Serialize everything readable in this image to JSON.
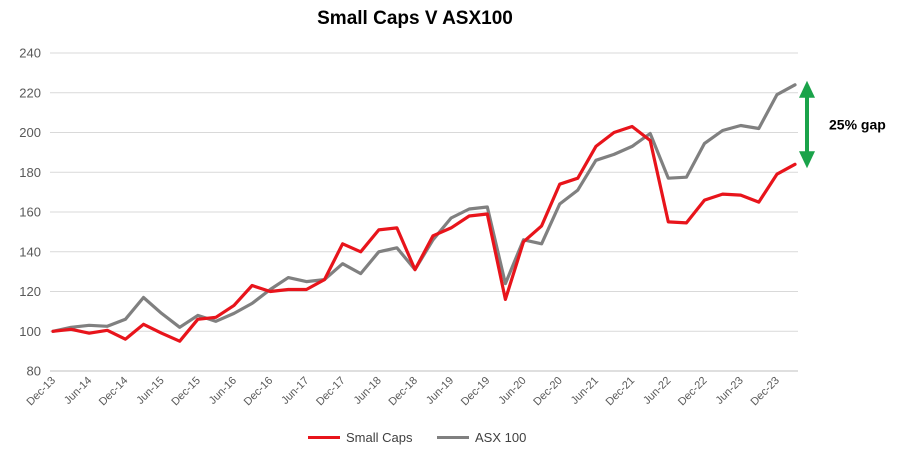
{
  "chart_data": {
    "type": "line",
    "title": "Small Caps V ASX100",
    "xlabel": "",
    "ylabel": "",
    "ylim": [
      80,
      240
    ],
    "yticks": [
      80,
      100,
      120,
      140,
      160,
      180,
      200,
      220,
      240
    ],
    "grid": true,
    "legend_position": "bottom",
    "x_tick_labels": [
      "Dec-13",
      "Jun-14",
      "Dec-14",
      "Jun-15",
      "Dec-15",
      "Jun-16",
      "Dec-16",
      "Jun-17",
      "Dec-17",
      "Jun-18",
      "Dec-18",
      "Jun-19",
      "Dec-19",
      "Jun-20",
      "Dec-20",
      "Jun-21",
      "Dec-21",
      "Jun-22",
      "Dec-22",
      "Jun-23",
      "Dec-23"
    ],
    "x": [
      "Dec-13",
      "Mar-14",
      "Jun-14",
      "Sep-14",
      "Dec-14",
      "Mar-15",
      "Jun-15",
      "Sep-15",
      "Dec-15",
      "Mar-16",
      "Jun-16",
      "Sep-16",
      "Dec-16",
      "Mar-17",
      "Jun-17",
      "Sep-17",
      "Dec-17",
      "Mar-18",
      "Jun-18",
      "Sep-18",
      "Dec-18",
      "Mar-19",
      "Jun-19",
      "Sep-19",
      "Dec-19",
      "Mar-20",
      "Jun-20",
      "Sep-20",
      "Dec-20",
      "Mar-21",
      "Jun-21",
      "Sep-21",
      "Dec-21",
      "Mar-22",
      "Jun-22",
      "Sep-22",
      "Dec-22",
      "Mar-23",
      "Jun-23",
      "Sep-23",
      "Dec-23",
      "Mar-24"
    ],
    "series": [
      {
        "name": "Small Caps",
        "color": "#e8141b",
        "values": [
          100,
          101,
          99,
          100.5,
          96,
          103.5,
          99,
          95,
          106,
          107,
          113,
          123,
          120,
          121,
          121,
          126,
          144,
          140,
          151,
          152,
          131,
          148,
          152,
          158,
          159,
          116,
          145,
          153,
          174,
          177,
          193,
          200,
          203,
          196,
          155,
          154.5,
          166,
          169,
          168.5,
          165,
          179,
          184
        ]
      },
      {
        "name": "ASX 100",
        "color": "#808080",
        "values": [
          100,
          102,
          103,
          102.5,
          106,
          117,
          109,
          102,
          108,
          105,
          109,
          114,
          121,
          127,
          125,
          126,
          134,
          129,
          140,
          142,
          131,
          146,
          157,
          161.5,
          162.5,
          124,
          146,
          144,
          164,
          171,
          186,
          189,
          193,
          199.5,
          177,
          177.5,
          194.5,
          201,
          203.5,
          202,
          219,
          224
        ]
      }
    ],
    "annotation": {
      "text": "25% gap",
      "arrow_color": "#1aa34a"
    }
  }
}
